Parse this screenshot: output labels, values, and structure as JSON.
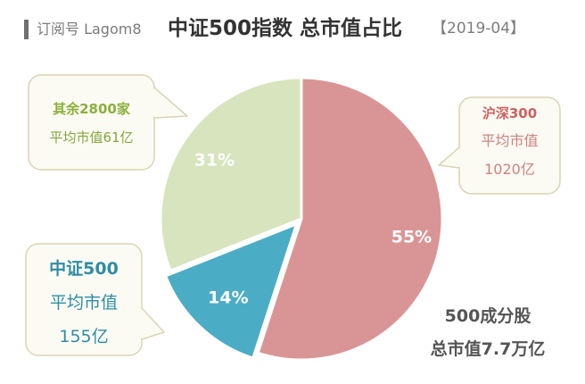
{
  "header": {
    "brand": "订阅号 Lagom8",
    "title": "中证500指数 总市值占比",
    "date": "【2019-04】"
  },
  "chart_data": {
    "type": "pie",
    "title": "中证500指数 总市值占比",
    "slices": [
      {
        "name": "沪深300",
        "value": 55,
        "label": "55%",
        "color": "#d99595",
        "callout": [
          "沪深300",
          "平均市值",
          "1020亿"
        ]
      },
      {
        "name": "中证500",
        "value": 14,
        "label": "14%",
        "color": "#4bacc6",
        "callout": [
          "中证500",
          "平均市值",
          "155亿"
        ]
      },
      {
        "name": "其余2800家",
        "value": 31,
        "label": "31%",
        "color": "#d7e4bd",
        "callout": [
          "其余2800家",
          "平均市值61亿"
        ]
      }
    ]
  },
  "summary": {
    "line1": "500成分股",
    "line2": "总市值7.7万亿"
  },
  "colors": {
    "callout_border": "#d9d4b2",
    "callout_fill": "#fbfbf4",
    "title_hs300": "#d06060",
    "title_zz500": "#2e8da6",
    "title_rest": "#8caf3b",
    "body_hs300": "#d08080",
    "body_zz500": "#2e8da6",
    "body_rest": "#85a63c"
  }
}
